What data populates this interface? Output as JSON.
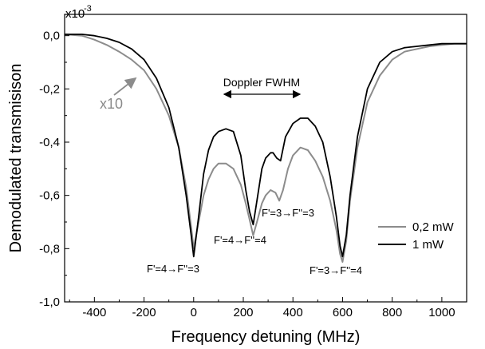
{
  "chart_data": {
    "type": "line",
    "xlabel": "Frequency detuning (MHz)",
    "ylabel": "Demodulated transmisison",
    "y_exponent_label": "x10",
    "y_exponent_power": "-3",
    "xlim": [
      -520,
      1100
    ],
    "ylim": [
      -1.0,
      0.08
    ],
    "x_ticks": [
      -400,
      -200,
      0,
      200,
      400,
      600,
      800,
      1000
    ],
    "x_tick_labels": [
      "-400",
      "-200",
      "0",
      "200",
      "400",
      "600",
      "800",
      "1000"
    ],
    "y_ticks": [
      0.0,
      -0.2,
      -0.4,
      -0.6,
      -0.8,
      -1.0
    ],
    "y_tick_labels": [
      "0,0",
      "-0,2",
      "-0,4",
      "-0,6",
      "-0,8",
      "-1,0"
    ],
    "legend": {
      "placement": "bottom-right"
    },
    "series": [
      {
        "name": "0,2 mW",
        "color": "#8c8c8c",
        "x": [
          -520,
          -450,
          -400,
          -350,
          -300,
          -250,
          -200,
          -150,
          -100,
          -60,
          -30,
          -10,
          0,
          20,
          40,
          60,
          80,
          100,
          130,
          160,
          190,
          210,
          225,
          240,
          255,
          275,
          290,
          310,
          330,
          345,
          360,
          380,
          400,
          430,
          460,
          490,
          520,
          550,
          575,
          590,
          600,
          615,
          630,
          660,
          700,
          750,
          800,
          850,
          900,
          950,
          1000,
          1050,
          1100
        ],
        "y": [
          0.005,
          0.0,
          -0.015,
          -0.035,
          -0.06,
          -0.09,
          -0.13,
          -0.2,
          -0.3,
          -0.42,
          -0.57,
          -0.72,
          -0.8,
          -0.7,
          -0.6,
          -0.54,
          -0.5,
          -0.48,
          -0.48,
          -0.5,
          -0.56,
          -0.63,
          -0.69,
          -0.75,
          -0.7,
          -0.63,
          -0.6,
          -0.58,
          -0.59,
          -0.62,
          -0.58,
          -0.5,
          -0.45,
          -0.42,
          -0.43,
          -0.47,
          -0.53,
          -0.62,
          -0.73,
          -0.82,
          -0.85,
          -0.77,
          -0.62,
          -0.42,
          -0.25,
          -0.15,
          -0.09,
          -0.06,
          -0.05,
          -0.04,
          -0.035,
          -0.03,
          -0.03
        ]
      },
      {
        "name": "1 mW",
        "color": "#000000",
        "x": [
          -520,
          -450,
          -400,
          -350,
          -300,
          -250,
          -200,
          -150,
          -100,
          -60,
          -30,
          -10,
          0,
          20,
          40,
          60,
          80,
          100,
          130,
          160,
          190,
          210,
          225,
          240,
          255,
          275,
          290,
          310,
          320,
          335,
          350,
          370,
          400,
          430,
          460,
          490,
          520,
          550,
          575,
          590,
          600,
          615,
          630,
          660,
          700,
          750,
          800,
          850,
          900,
          950,
          1000,
          1050,
          1100
        ],
        "y": [
          0.005,
          0.005,
          0.0,
          -0.01,
          -0.025,
          -0.05,
          -0.09,
          -0.16,
          -0.27,
          -0.42,
          -0.6,
          -0.75,
          -0.83,
          -0.68,
          -0.52,
          -0.43,
          -0.38,
          -0.36,
          -0.35,
          -0.36,
          -0.45,
          -0.58,
          -0.66,
          -0.71,
          -0.62,
          -0.5,
          -0.46,
          -0.44,
          -0.44,
          -0.46,
          -0.47,
          -0.38,
          -0.33,
          -0.31,
          -0.31,
          -0.34,
          -0.4,
          -0.53,
          -0.68,
          -0.79,
          -0.83,
          -0.75,
          -0.6,
          -0.38,
          -0.2,
          -0.1,
          -0.06,
          -0.045,
          -0.04,
          -0.035,
          -0.03,
          -0.03,
          -0.03
        ]
      }
    ],
    "annotations": {
      "x10": "x10",
      "doppler": "Doppler FWHM",
      "trans1": "F'=4→F''=3",
      "trans2": "F'=4→F''=4",
      "trans3": "F'=3→F''=3",
      "trans4": "F'=3→F''=4"
    }
  }
}
